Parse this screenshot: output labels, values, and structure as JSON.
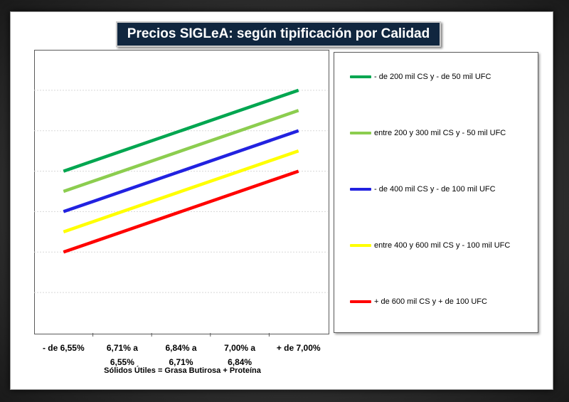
{
  "chart_data": {
    "type": "line",
    "title": "Precios SIGLeA: según tipificación  por Calidad",
    "xlabel": "Sólidos Útiles = Grasa Butirosa + Proteína",
    "ylabel": "",
    "categories": [
      [
        "- de 6,55%"
      ],
      [
        "6,71% a",
        "6,55%"
      ],
      [
        "6,84% a",
        "6,71%"
      ],
      [
        "7,00% a",
        "6,84%"
      ],
      [
        "+ de 7,00%"
      ]
    ],
    "ylim": [
      0,
      7
    ],
    "grid": true,
    "legend_position": "right",
    "series": [
      {
        "name": "- de 200 mil CS y - de 50 mil UFC",
        "color": "#00a650",
        "values": [
          4.0,
          4.5,
          5.0,
          5.5,
          6.0
        ]
      },
      {
        "name": "entre 200 y 300 mil CS y - 50 mil UFC",
        "color": "#8ccd4f",
        "values": [
          3.5,
          4.0,
          4.5,
          5.0,
          5.5
        ]
      },
      {
        "name": "- de 400 mil CS y - de 100 mil UFC",
        "color": "#2222e0",
        "values": [
          3.0,
          3.5,
          4.0,
          4.5,
          5.0
        ]
      },
      {
        "name": "entre 400 y 600 mil CS y - 100 mil UFC",
        "color": "#ffff00",
        "values": [
          2.5,
          3.0,
          3.5,
          4.0,
          4.5
        ]
      },
      {
        "name": "+ de 600 mil CS y + de 100 UFC",
        "color": "#ff0000",
        "values": [
          2.0,
          2.5,
          3.0,
          3.5,
          4.0
        ]
      }
    ]
  }
}
